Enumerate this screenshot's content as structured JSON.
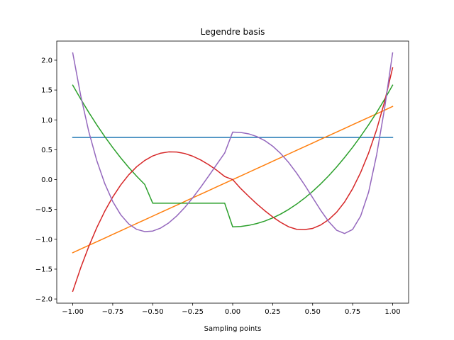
{
  "chart_data": {
    "type": "line",
    "title": "Legendre basis",
    "xlabel": "Sampling points",
    "ylabel": "",
    "xlim": [
      -1.1,
      1.1
    ],
    "ylim": [
      -2.07,
      2.32
    ],
    "x_ticks": [
      -1.0,
      -0.75,
      -0.5,
      -0.25,
      0.0,
      0.25,
      0.5,
      0.75,
      1.0
    ],
    "x_tick_labels": [
      "−1.00",
      "−0.75",
      "−0.50",
      "−0.25",
      "0.00",
      "0.25",
      "0.50",
      "0.75",
      "1.00"
    ],
    "y_ticks": [
      -2.0,
      -1.5,
      -1.0,
      -0.5,
      0.0,
      0.5,
      1.0,
      1.5,
      2.0
    ],
    "y_tick_labels": [
      "−2.0",
      "−1.5",
      "−1.0",
      "−0.5",
      "0.0",
      "0.5",
      "1.0",
      "1.5",
      "2.0"
    ],
    "grid": false,
    "x": [
      -1.0,
      -0.95,
      -0.9,
      -0.85,
      -0.8,
      -0.75,
      -0.7,
      -0.65,
      -0.6,
      -0.55,
      -0.5,
      -0.45,
      -0.4,
      -0.35,
      -0.3,
      -0.25,
      -0.2,
      -0.15,
      -0.1,
      -0.05,
      0.0,
      0.05,
      0.1,
      0.15,
      0.2,
      0.25,
      0.3,
      0.35,
      0.4,
      0.45,
      0.5,
      0.55,
      0.6,
      0.65,
      0.7,
      0.75,
      0.8,
      0.85,
      0.9,
      0.95,
      1.0
    ],
    "series": [
      {
        "color": "#1f77b4",
        "values": [
          0.707,
          0.707,
          0.707,
          0.707,
          0.707,
          0.707,
          0.707,
          0.707,
          0.707,
          0.707,
          0.707,
          0.707,
          0.707,
          0.707,
          0.707,
          0.707,
          0.707,
          0.707,
          0.707,
          0.707,
          0.707,
          0.707,
          0.707,
          0.707,
          0.707,
          0.707,
          0.707,
          0.707,
          0.707,
          0.707,
          0.707,
          0.707,
          0.707,
          0.707,
          0.707,
          0.707,
          0.707,
          0.707,
          0.707,
          0.707,
          0.707
        ]
      },
      {
        "color": "#ff7f0e",
        "values": [
          -1.225,
          -1.163,
          -1.102,
          -1.041,
          -0.98,
          -0.919,
          -0.857,
          -0.796,
          -0.735,
          -0.674,
          -0.612,
          -0.551,
          -0.49,
          -0.429,
          -0.367,
          -0.306,
          -0.245,
          -0.184,
          -0.122,
          -0.061,
          0.0,
          0.061,
          0.122,
          0.184,
          0.245,
          0.306,
          0.367,
          0.429,
          0.49,
          0.551,
          0.612,
          0.674,
          0.735,
          0.796,
          0.857,
          0.919,
          0.98,
          1.041,
          1.102,
          1.163,
          1.225
        ]
      },
      {
        "color": "#2ca02c",
        "values": [
          1.581,
          1.348,
          1.127,
          0.918,
          0.721,
          0.537,
          0.364,
          0.204,
          0.055,
          -0.081,
          -0.395,
          -0.395,
          -0.395,
          -0.395,
          -0.395,
          -0.395,
          -0.395,
          -0.395,
          -0.395,
          -0.395,
          -0.791,
          -0.785,
          -0.767,
          -0.737,
          -0.696,
          -0.642,
          -0.577,
          -0.5,
          -0.411,
          -0.31,
          -0.198,
          -0.073,
          0.063,
          0.211,
          0.371,
          0.541,
          0.724,
          0.918,
          1.123,
          1.345,
          1.581
        ]
      },
      {
        "color": "#d62728",
        "values": [
          -1.871,
          -1.476,
          -1.122,
          -0.807,
          -0.531,
          -0.292,
          -0.089,
          0.08,
          0.216,
          0.32,
          0.396,
          0.443,
          0.464,
          0.462,
          0.437,
          0.392,
          0.329,
          0.25,
          0.157,
          0.052,
          0.0,
          -0.149,
          -0.28,
          -0.405,
          -0.52,
          -0.625,
          -0.716,
          -0.791,
          -0.833,
          -0.838,
          -0.818,
          -0.761,
          -0.672,
          -0.546,
          -0.375,
          -0.153,
          0.118,
          0.445,
          0.836,
          1.306,
          1.871
        ]
      },
      {
        "color": "#9467bd",
        "values": [
          2.121,
          1.405,
          0.807,
          0.321,
          -0.066,
          -0.367,
          -0.589,
          -0.743,
          -0.834,
          -0.871,
          -0.862,
          -0.811,
          -0.726,
          -0.61,
          -0.468,
          -0.306,
          -0.128,
          0.061,
          0.253,
          0.444,
          0.795,
          0.789,
          0.766,
          0.722,
          0.654,
          0.56,
          0.437,
          0.286,
          0.108,
          -0.09,
          -0.302,
          -0.513,
          -0.702,
          -0.848,
          -0.903,
          -0.835,
          -0.612,
          -0.21,
          0.412,
          1.194,
          2.121
        ]
      }
    ]
  }
}
